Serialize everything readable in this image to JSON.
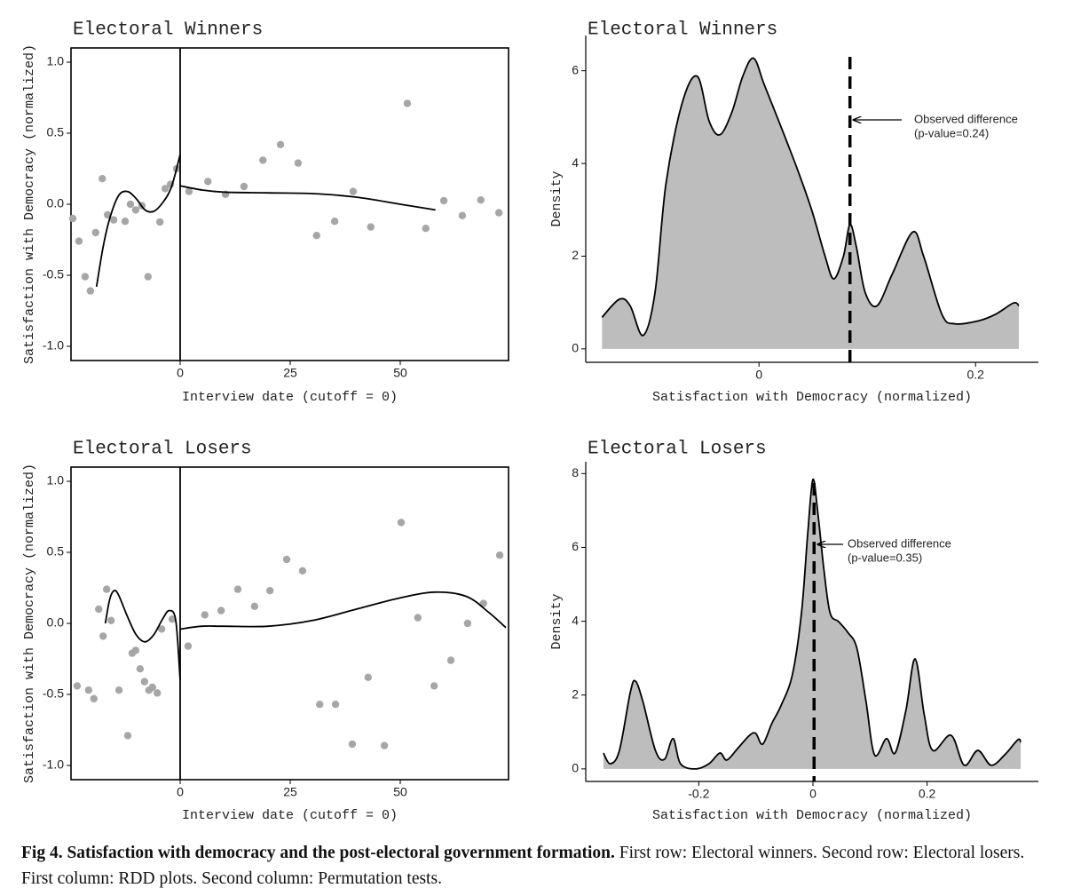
{
  "chart_data": [
    {
      "type": "rdd",
      "title": "Electoral Winners",
      "xlabel": "Interview date (cutoff = 0)",
      "ylabel": "Satisfaction with Democracy (normalized)",
      "xlim": [
        -24.8,
        74.6
      ],
      "ylim": [
        -1.1,
        1.1
      ],
      "xticks": [
        0,
        25,
        50
      ],
      "yticks": [
        {
          "value": 1,
          "label": "1.0"
        },
        0.5,
        {
          "value": 0,
          "label": "0.0"
        },
        -0.5,
        {
          "value": -1,
          "label": "-1.0"
        }
      ],
      "cutoff": 0,
      "point_color": "#a6a6a6",
      "line_color": "#000000",
      "x": [
        -24.4,
        -23.0,
        -21.6,
        -20.4,
        -19.2,
        -17.7,
        -16.5,
        -15.1,
        -12.5,
        -11.3,
        -10.1,
        -8.7,
        -7.3,
        -4.6,
        -3.4,
        -2.2,
        -0.8,
        2.0,
        6.3,
        10.3,
        14.5,
        18.8,
        22.8,
        26.8,
        31.0,
        35.1,
        39.3,
        43.3,
        51.6,
        55.8,
        59.9,
        64.1,
        68.3,
        72.4
      ],
      "values": [
        -0.1,
        -0.26,
        -0.51,
        -0.61,
        -0.2,
        0.18,
        -0.075,
        -0.11,
        -0.12,
        0.0,
        -0.04,
        -0.01,
        -0.51,
        -0.125,
        0.11,
        0.14,
        0.25,
        0.09,
        0.16,
        0.07,
        0.125,
        0.31,
        0.42,
        0.29,
        -0.22,
        -0.12,
        0.09,
        -0.16,
        0.71,
        -0.17,
        0.025,
        -0.08,
        0.03,
        -0.06
      ],
      "fit": [
        {
          "x": [
            -19,
            -17.5,
            -16,
            -14,
            -12,
            -10,
            -8,
            -6,
            -4,
            -2,
            0
          ],
          "values": [
            -0.58,
            -0.3,
            -0.1,
            0.06,
            0.09,
            0.04,
            -0.04,
            -0.05,
            0.01,
            0.12,
            0.35
          ]
        },
        {
          "x": [
            0,
            5,
            10,
            20,
            30,
            40,
            50,
            58
          ],
          "values": [
            0.13,
            0.1,
            0.085,
            0.08,
            0.075,
            0.05,
            0.0,
            -0.04
          ]
        }
      ]
    },
    {
      "type": "density",
      "title": "Electoral Winners",
      "xlabel": "Satisfaction with Democracy (normalized)",
      "ylabel": "Density",
      "xlim": [
        -0.16,
        0.258
      ],
      "ylim": [
        -0.29,
        6.76
      ],
      "xticks": [
        0,
        0.2
      ],
      "yticks": [
        0,
        2,
        4,
        6
      ],
      "color": "#bdbdbd",
      "observed": 0.084,
      "annotation": [
        "Observed difference",
        "(p-value=0.24)"
      ],
      "x": [
        -0.145,
        -0.129,
        -0.119,
        -0.107,
        -0.096,
        -0.086,
        -0.071,
        -0.057,
        -0.046,
        -0.036,
        -0.025,
        -0.015,
        -0.005,
        0.005,
        0.02,
        0.036,
        0.049,
        0.061,
        0.069,
        0.078,
        0.084,
        0.09,
        0.098,
        0.109,
        0.123,
        0.142,
        0.152,
        0.169,
        0.181,
        0.202,
        0.218,
        0.235,
        0.24
      ],
      "values": [
        0.68,
        1.07,
        0.93,
        0.29,
        1.22,
        3.55,
        5.3,
        5.88,
        4.91,
        4.62,
        5.11,
        5.88,
        6.27,
        5.69,
        4.81,
        3.84,
        2.97,
        2.0,
        1.51,
        2.0,
        2.68,
        2.19,
        1.22,
        0.93,
        1.61,
        2.52,
        2.0,
        0.74,
        0.54,
        0.6,
        0.74,
        0.99,
        0.93
      ]
    },
    {
      "type": "rdd",
      "title": "Electoral Losers",
      "xlabel": "Interview date (cutoff = 0)",
      "ylabel": "Satisfaction with Democracy (normalized)",
      "xlim": [
        -24.8,
        74.6
      ],
      "ylim": [
        -1.1,
        1.1
      ],
      "xticks": [
        0,
        25,
        50
      ],
      "yticks": [
        {
          "value": 1,
          "label": "1.0"
        },
        0.5,
        {
          "value": 0,
          "label": "0.0"
        },
        -0.5,
        {
          "value": -1,
          "label": "-1.0"
        }
      ],
      "cutoff": 0,
      "point_color": "#a6a6a6",
      "line_color": "#000000",
      "x": [
        -23.4,
        -20.8,
        -19.6,
        -18.5,
        -17.5,
        -16.7,
        -15.7,
        -13.9,
        -11.9,
        -10.9,
        -10.1,
        -9.1,
        -8.1,
        -7.1,
        -6.3,
        -5.2,
        -4.2,
        -1.8,
        1.8,
        5.6,
        9.3,
        13.1,
        16.9,
        20.4,
        24.2,
        27.8,
        31.7,
        35.3,
        39.1,
        42.7,
        46.4,
        50.2,
        54.0,
        57.7,
        61.5,
        65.3,
        68.9,
        72.6
      ],
      "values": [
        -0.44,
        -0.47,
        -0.53,
        0.1,
        -0.09,
        0.24,
        0.02,
        -0.47,
        -0.79,
        -0.21,
        -0.19,
        -0.32,
        -0.41,
        -0.47,
        -0.45,
        -0.49,
        -0.04,
        0.03,
        -0.16,
        0.06,
        0.09,
        0.24,
        0.12,
        0.23,
        0.45,
        0.37,
        -0.57,
        -0.57,
        -0.85,
        -0.38,
        -0.86,
        0.71,
        0.04,
        -0.44,
        -0.26,
        0.0,
        0.14,
        0.48
      ],
      "fit": [
        {
          "x": [
            -17,
            -16,
            -15,
            -14,
            -12,
            -10,
            -8,
            -6,
            -4,
            -2.5,
            -1,
            0
          ],
          "values": [
            0.0,
            0.17,
            0.23,
            0.2,
            0.05,
            -0.08,
            -0.13,
            -0.08,
            0.03,
            0.09,
            0.02,
            -0.4
          ]
        },
        {
          "x": [
            0,
            5,
            10,
            20,
            30,
            40,
            50,
            58,
            65,
            70,
            74
          ],
          "values": [
            -0.04,
            -0.02,
            -0.02,
            -0.02,
            0.02,
            0.1,
            0.18,
            0.22,
            0.19,
            0.08,
            -0.03
          ]
        }
      ]
    },
    {
      "type": "density",
      "title": "Electoral Losers",
      "xlabel": "Satisfaction with Democracy (normalized)",
      "ylabel": "Density",
      "xlim": [
        -0.398,
        0.395
      ],
      "ylim": [
        -0.34,
        8.32
      ],
      "xticks": [
        -0.2,
        0,
        0.2
      ],
      "yticks": [
        0,
        2,
        4,
        6,
        8
      ],
      "color": "#bdbdbd",
      "observed": 0.002,
      "annotation": [
        "Observed difference",
        "(p-value=0.35)"
      ],
      "x": [
        -0.367,
        -0.355,
        -0.339,
        -0.32,
        -0.311,
        -0.298,
        -0.276,
        -0.26,
        -0.245,
        -0.232,
        -0.205,
        -0.182,
        -0.163,
        -0.151,
        -0.132,
        -0.111,
        -0.1,
        -0.088,
        -0.072,
        -0.056,
        -0.036,
        -0.02,
        -0.009,
        0.0,
        0.009,
        0.019,
        0.03,
        0.045,
        0.061,
        0.077,
        0.093,
        0.108,
        0.129,
        0.144,
        0.163,
        0.179,
        0.195,
        0.21,
        0.242,
        0.265,
        0.289,
        0.312,
        0.336,
        0.359,
        0.364
      ],
      "values": [
        0.43,
        0.14,
        0.5,
        2.07,
        2.38,
        1.83,
        0.5,
        0.26,
        0.82,
        0.14,
        0.0,
        0.14,
        0.43,
        0.24,
        0.55,
        0.91,
        0.96,
        0.67,
        1.23,
        1.71,
        2.55,
        4.23,
        6.39,
        7.84,
        6.88,
        5.43,
        4.23,
        3.99,
        3.7,
        3.27,
        1.83,
        0.38,
        0.82,
        0.43,
        1.59,
        2.98,
        1.47,
        0.5,
        0.91,
        0.1,
        0.5,
        0.1,
        0.38,
        0.79,
        0.72
      ]
    }
  ],
  "caption": {
    "label": "Fig 4.  Satisfaction with democracy and the post-electoral government formation.",
    "text": "First row: Electoral winners. Second row: Electoral losers. First column: RDD plots. Second column: Permutation tests."
  }
}
